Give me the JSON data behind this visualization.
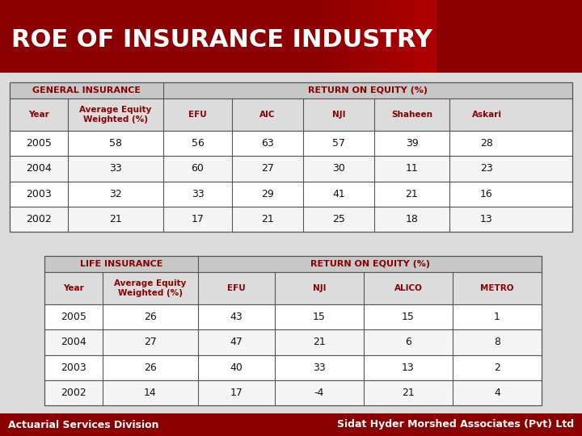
{
  "title": "ROE OF INSURANCE INDUSTRY",
  "title_bg_color": "#8B0000",
  "title_text_color": "#FFFFFF",
  "general_label": "GENERAL INSURANCE",
  "general_roe_label": "RETURN ON EQUITY (%)",
  "general_headers": [
    "Year",
    "Average Equity\nWeighted (%)",
    "EFU",
    "AIC",
    "NJI",
    "Shaheen",
    "Askari"
  ],
  "general_data": [
    [
      "2005",
      "58",
      "56",
      "63",
      "57",
      "39",
      "28"
    ],
    [
      "2004",
      "33",
      "60",
      "27",
      "30",
      "11",
      "23"
    ],
    [
      "2003",
      "32",
      "33",
      "29",
      "41",
      "21",
      "16"
    ],
    [
      "2002",
      "21",
      "17",
      "21",
      "25",
      "18",
      "13"
    ]
  ],
  "life_label": "LIFE INSURANCE",
  "life_roe_label": "RETURN ON EQUITY (%)",
  "life_headers": [
    "Year",
    "Average Equity\nWeighted (%)",
    "EFU",
    "NJI",
    "ALICO",
    "METRO"
  ],
  "life_data": [
    [
      "2005",
      "26",
      "43",
      "15",
      "15",
      "1"
    ],
    [
      "2004",
      "27",
      "47",
      "21",
      "6",
      "8"
    ],
    [
      "2003",
      "26",
      "40",
      "33",
      "13",
      "2"
    ],
    [
      "2002",
      "14",
      "17",
      "-4",
      "21",
      "4"
    ]
  ],
  "footer_left": "Actuarial Services Division",
  "footer_right": "Sidat Hyder Morshed Associates (Pvt) Ltd",
  "footer_bg": "#8B0000",
  "footer_text_color": "#FFFFFF",
  "header_text_color": "#8B0000",
  "body_bg": "#FFFFFF",
  "row_bg1": "#FFFFFF",
  "row_bg2": "#F0F0F0",
  "table_border": "#444444",
  "subheader_bg": "#E0E0E0"
}
